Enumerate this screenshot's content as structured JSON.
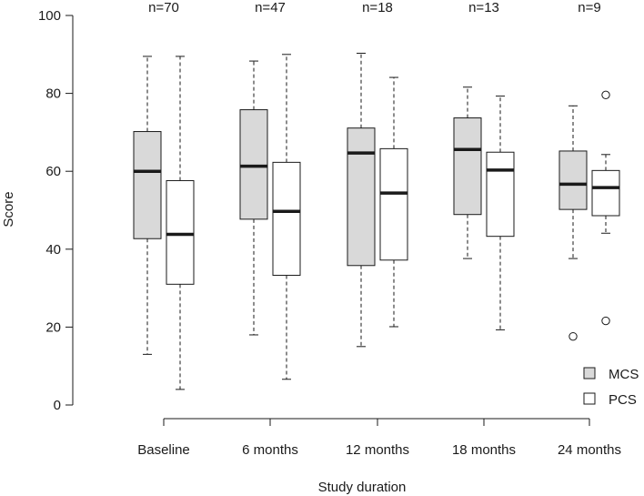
{
  "chart_data": {
    "type": "boxplot",
    "title": "",
    "xlabel": "Study duration",
    "ylabel": "Score",
    "ylim": [
      0,
      100
    ],
    "yticks": [
      0,
      20,
      40,
      60,
      80,
      100
    ],
    "categories": [
      "Baseline",
      "6 months",
      "12 months",
      "18 months",
      "24 months"
    ],
    "sample_sizes": [
      "n=70",
      "n=47",
      "n=18",
      "n=13",
      "n=9"
    ],
    "legend": {
      "position": "bottom-right",
      "entries": [
        "MCS",
        "PCS"
      ]
    },
    "colors": {
      "MCS": "#d9d9d9",
      "PCS": "#ffffff",
      "stroke": "#1a1a1a"
    },
    "series": [
      {
        "name": "MCS",
        "boxes": [
          {
            "whisker_low": 13,
            "q1": 42.7,
            "median": 60,
            "q3": 70.2,
            "whisker_high": 89.5,
            "outliers": []
          },
          {
            "whisker_low": 18,
            "q1": 47.7,
            "median": 61.3,
            "q3": 75.8,
            "whisker_high": 88.3,
            "outliers": []
          },
          {
            "whisker_low": 15,
            "q1": 35.8,
            "median": 64.7,
            "q3": 71.1,
            "whisker_high": 90.3,
            "outliers": []
          },
          {
            "whisker_low": 37.6,
            "q1": 48.9,
            "median": 65.6,
            "q3": 73.7,
            "whisker_high": 81.6,
            "outliers": []
          },
          {
            "whisker_low": 37.6,
            "q1": 50.2,
            "median": 56.7,
            "q3": 65.2,
            "whisker_high": 76.8,
            "outliers": [
              17.6
            ]
          }
        ]
      },
      {
        "name": "PCS",
        "boxes": [
          {
            "whisker_low": 4,
            "q1": 31,
            "median": 43.8,
            "q3": 57.6,
            "whisker_high": 89.5,
            "outliers": []
          },
          {
            "whisker_low": 6.6,
            "q1": 33.3,
            "median": 49.7,
            "q3": 62.3,
            "whisker_high": 90,
            "outliers": []
          },
          {
            "whisker_low": 20.1,
            "q1": 37.2,
            "median": 54.4,
            "q3": 65.8,
            "whisker_high": 84.1,
            "outliers": []
          },
          {
            "whisker_low": 19.3,
            "q1": 43.3,
            "median": 60.3,
            "q3": 64.9,
            "whisker_high": 79.3,
            "outliers": []
          },
          {
            "whisker_low": 44.1,
            "q1": 48.6,
            "median": 55.8,
            "q3": 60.2,
            "whisker_high": 64.3,
            "outliers": [
              21.6,
              79.6
            ]
          }
        ]
      }
    ]
  }
}
